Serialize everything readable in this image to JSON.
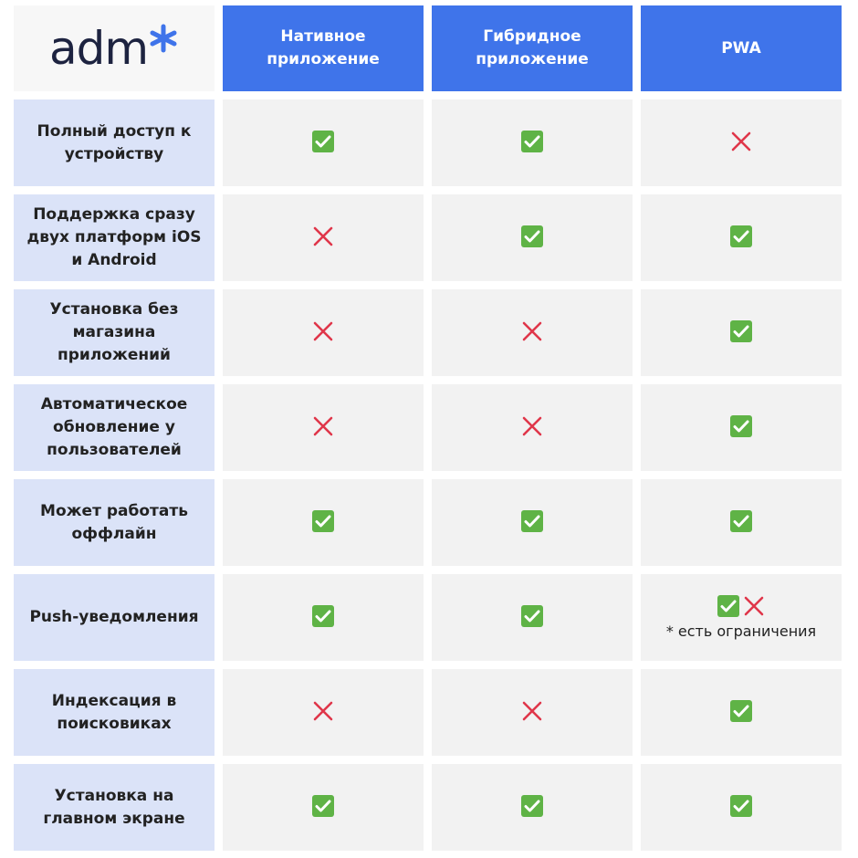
{
  "logo": "adm",
  "header": [
    "Нативное приложение",
    "Гибридное приложение",
    "PWA"
  ],
  "rows": [
    {
      "label": "Полный доступ к устройству",
      "cells": [
        true,
        true,
        false
      ]
    },
    {
      "label": "Поддержка сразу двух платформ iOS и Android",
      "cells": [
        false,
        true,
        true
      ]
    },
    {
      "label": "Установка без магазина приложений",
      "cells": [
        false,
        false,
        true
      ]
    },
    {
      "label": "Автоматическое обновление у пользователей",
      "cells": [
        false,
        false,
        true
      ]
    },
    {
      "label": "Может работать оффлайн",
      "cells": [
        true,
        true,
        true
      ]
    },
    {
      "label": "Push-уведомления",
      "cells": [
        true,
        true,
        {
          "marks": [
            true,
            false
          ],
          "note": "* есть ограничения"
        }
      ]
    },
    {
      "label": "Индексация в поисковиках",
      "cells": [
        false,
        false,
        true
      ]
    },
    {
      "label": "Установка на главном экране",
      "cells": [
        true,
        true,
        true
      ]
    }
  ]
}
